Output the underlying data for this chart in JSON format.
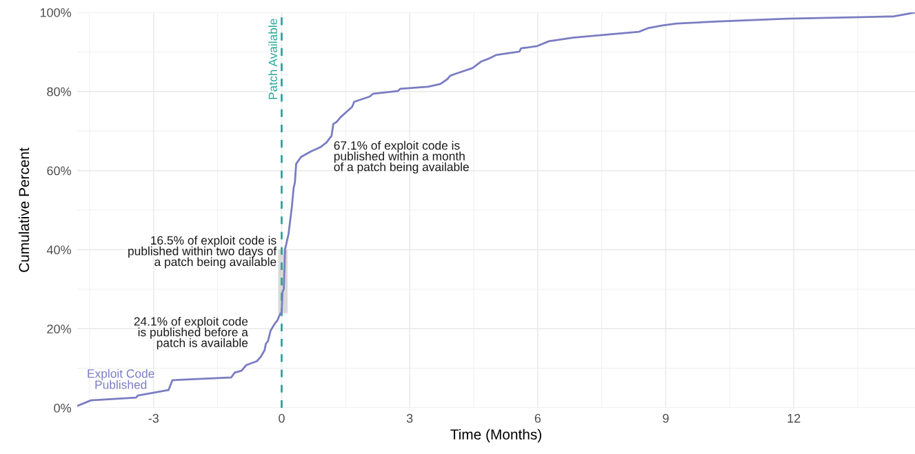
{
  "chart_data": {
    "type": "line",
    "xlabel": "Time (Months)",
    "ylabel": "Cumulative Percent",
    "x": [
      -4.79,
      -4.47,
      -3.41,
      -3.37,
      -2.65,
      -2.56,
      -1.18,
      -1.1,
      -0.94,
      -0.83,
      -0.58,
      -0.49,
      -0.4,
      -0.37,
      -0.32,
      -0.26,
      -0.16,
      -0.1,
      -0.03,
      0.0,
      0.02,
      0.05,
      0.06,
      0.08,
      0.16,
      0.24,
      0.28,
      0.31,
      0.34,
      0.45,
      0.68,
      0.92,
      1.05,
      1.17,
      1.21,
      1.29,
      1.38,
      1.65,
      1.7,
      2.06,
      2.14,
      2.72,
      2.78,
      3.43,
      3.72,
      3.88,
      3.95,
      4.08,
      4.47,
      4.68,
      4.85,
      5.02,
      5.57,
      5.61,
      5.99,
      6.26,
      6.83,
      7.1,
      8.37,
      8.58,
      8.93,
      9.26,
      10.23,
      11.84,
      14.35,
      14.6,
      14.84
    ],
    "series": [
      {
        "name": "Exploit Code\nPublished",
        "color": "#7a7dc2",
        "values": [
          0.5,
          1.9,
          2.6,
          3.1,
          4.5,
          7.0,
          7.7,
          8.9,
          9.4,
          10.8,
          11.8,
          12.9,
          14.6,
          16.2,
          16.9,
          19.5,
          21.3,
          22.1,
          23.9,
          24.0,
          29.4,
          30.0,
          33.4,
          40.1,
          43.9,
          50.9,
          55.6,
          57.0,
          61.7,
          63.4,
          64.8,
          66.0,
          67.1,
          68.8,
          71.8,
          72.3,
          73.5,
          76.1,
          77.4,
          78.7,
          79.4,
          80.1,
          80.7,
          81.2,
          81.9,
          83.1,
          84.0,
          84.5,
          85.9,
          87.6,
          88.3,
          89.2,
          90.1,
          90.9,
          91.5,
          92.7,
          93.6,
          93.9,
          95.1,
          96.0,
          96.7,
          97.2,
          97.7,
          98.4,
          99.0,
          99.5,
          100
        ]
      }
    ],
    "xlim": [
      -4.79,
      14.84
    ],
    "xticks": [
      -3,
      0,
      3,
      6,
      9,
      12
    ],
    "ylim": [
      0,
      100
    ],
    "yticks": [
      {
        "value": 0,
        "label": "0%"
      },
      {
        "value": 20,
        "label": "20%"
      },
      {
        "value": 40,
        "label": "40%"
      },
      {
        "value": 60,
        "label": "60%"
      },
      {
        "value": 80,
        "label": "80%"
      },
      {
        "value": 100,
        "label": "100%"
      }
    ],
    "grid": true,
    "legend": false,
    "ref_lines": [
      {
        "axis": "x",
        "value": 0,
        "label": "Patch Available",
        "color": "#26a69a",
        "line_style": "dashed"
      }
    ],
    "bands": [
      {
        "axis": "x",
        "from": -0.08,
        "to": 0.14,
        "color": "#d9d9d9"
      }
    ],
    "annotations": [
      "67.1% of exploit code is\npublished within a month\nof a patch being available",
      "16.5% of exploit code is\npublished within two days of\na patch being available",
      "24.1% of exploit code\nis published before a\npatch is available"
    ]
  }
}
